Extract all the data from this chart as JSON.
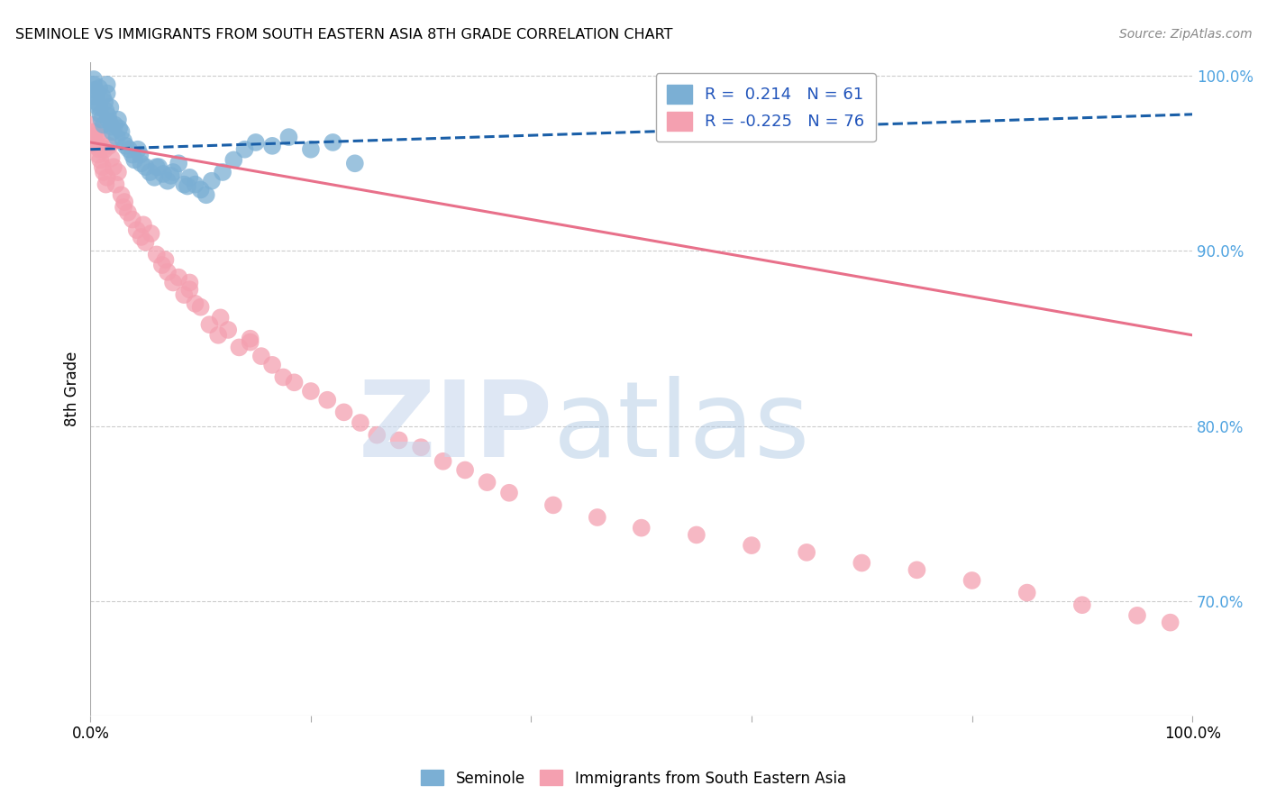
{
  "title": "SEMINOLE VS IMMIGRANTS FROM SOUTH EASTERN ASIA 8TH GRADE CORRELATION CHART",
  "source": "Source: ZipAtlas.com",
  "ylabel": "8th Grade",
  "xlim": [
    0.0,
    1.0
  ],
  "ylim": [
    0.635,
    1.008
  ],
  "yticks": [
    0.7,
    0.8,
    0.9,
    1.0
  ],
  "ytick_labels": [
    "70.0%",
    "80.0%",
    "90.0%",
    "100.0%"
  ],
  "xticks": [
    0.0,
    0.2,
    0.4,
    0.6,
    0.8,
    1.0
  ],
  "xtick_labels": [
    "0.0%",
    "",
    "",
    "",
    "",
    "100.0%"
  ],
  "blue_R": 0.214,
  "blue_N": 61,
  "pink_R": -0.225,
  "pink_N": 76,
  "blue_color": "#7bafd4",
  "pink_color": "#f4a0b0",
  "blue_line_color": "#1a5fa8",
  "pink_line_color": "#e8708a",
  "blue_scatter_x": [
    0.002,
    0.003,
    0.004,
    0.005,
    0.006,
    0.007,
    0.008,
    0.009,
    0.01,
    0.011,
    0.012,
    0.013,
    0.014,
    0.015,
    0.016,
    0.017,
    0.018,
    0.019,
    0.02,
    0.022,
    0.024,
    0.026,
    0.028,
    0.03,
    0.032,
    0.035,
    0.038,
    0.04,
    0.043,
    0.046,
    0.05,
    0.054,
    0.058,
    0.062,
    0.066,
    0.07,
    0.075,
    0.08,
    0.085,
    0.09,
    0.095,
    0.1,
    0.11,
    0.12,
    0.13,
    0.14,
    0.15,
    0.165,
    0.18,
    0.2,
    0.22,
    0.24,
    0.003,
    0.008,
    0.015,
    0.025,
    0.045,
    0.06,
    0.073,
    0.088,
    0.105
  ],
  "blue_scatter_y": [
    0.99,
    0.995,
    0.992,
    0.988,
    0.985,
    0.982,
    0.993,
    0.978,
    0.975,
    0.988,
    0.972,
    0.985,
    0.98,
    0.99,
    0.977,
    0.974,
    0.982,
    0.971,
    0.968,
    0.972,
    0.965,
    0.97,
    0.968,
    0.963,
    0.96,
    0.958,
    0.955,
    0.952,
    0.958,
    0.95,
    0.948,
    0.945,
    0.942,
    0.948,
    0.944,
    0.94,
    0.945,
    0.95,
    0.938,
    0.942,
    0.938,
    0.935,
    0.94,
    0.945,
    0.952,
    0.958,
    0.962,
    0.96,
    0.965,
    0.958,
    0.962,
    0.95,
    0.998,
    0.983,
    0.995,
    0.975,
    0.955,
    0.948,
    0.943,
    0.937,
    0.932
  ],
  "pink_scatter_x": [
    0.002,
    0.003,
    0.004,
    0.005,
    0.006,
    0.007,
    0.008,
    0.009,
    0.01,
    0.011,
    0.012,
    0.013,
    0.015,
    0.017,
    0.019,
    0.021,
    0.023,
    0.025,
    0.028,
    0.031,
    0.034,
    0.038,
    0.042,
    0.046,
    0.05,
    0.055,
    0.06,
    0.065,
    0.07,
    0.075,
    0.08,
    0.085,
    0.09,
    0.095,
    0.1,
    0.108,
    0.116,
    0.125,
    0.135,
    0.145,
    0.155,
    0.165,
    0.175,
    0.185,
    0.2,
    0.215,
    0.23,
    0.245,
    0.26,
    0.28,
    0.3,
    0.32,
    0.34,
    0.36,
    0.38,
    0.42,
    0.46,
    0.5,
    0.55,
    0.6,
    0.65,
    0.7,
    0.75,
    0.8,
    0.85,
    0.9,
    0.95,
    0.98,
    0.004,
    0.014,
    0.03,
    0.048,
    0.068,
    0.09,
    0.118,
    0.145
  ],
  "pink_scatter_y": [
    0.972,
    0.968,
    0.963,
    0.96,
    0.966,
    0.955,
    0.958,
    0.952,
    0.965,
    0.948,
    0.945,
    0.958,
    0.942,
    0.96,
    0.953,
    0.948,
    0.938,
    0.945,
    0.932,
    0.928,
    0.922,
    0.918,
    0.912,
    0.908,
    0.905,
    0.91,
    0.898,
    0.892,
    0.888,
    0.882,
    0.885,
    0.875,
    0.878,
    0.87,
    0.868,
    0.858,
    0.852,
    0.855,
    0.845,
    0.85,
    0.84,
    0.835,
    0.828,
    0.825,
    0.82,
    0.815,
    0.808,
    0.802,
    0.795,
    0.792,
    0.788,
    0.78,
    0.775,
    0.768,
    0.762,
    0.755,
    0.748,
    0.742,
    0.738,
    0.732,
    0.728,
    0.722,
    0.718,
    0.712,
    0.705,
    0.698,
    0.692,
    0.688,
    0.968,
    0.938,
    0.925,
    0.915,
    0.895,
    0.882,
    0.862,
    0.848
  ],
  "blue_trend_y_start": 0.958,
  "blue_trend_y_end": 0.978,
  "pink_trend_y_start": 0.962,
  "pink_trend_y_end": 0.852
}
